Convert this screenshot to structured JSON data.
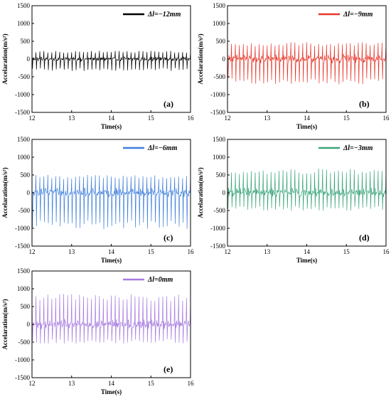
{
  "chart_data": [
    {
      "type": "line",
      "panel_label": "(a)",
      "legend": "Δl=−12mm",
      "color": "#000000",
      "xlabel": "Time(s)",
      "ylabel": "Accelaration(m/s²)",
      "xlim": [
        12,
        16
      ],
      "ylim": [
        -1500,
        1500
      ],
      "xticks": [
        12,
        13,
        14,
        15,
        16
      ],
      "yticks": [
        1500,
        1000,
        500,
        0,
        -500,
        -1000,
        -1500
      ],
      "legend_position": "top-right",
      "signal": {
        "pulses_per_second": 10,
        "upper_peak": 220,
        "lower_peak": -320,
        "noise_band": 150
      }
    },
    {
      "type": "line",
      "panel_label": "(b)",
      "legend": "Δl=−9mm",
      "color": "#e8372a",
      "xlabel": "Time(s)",
      "ylabel": "Accelaration(m/s²)",
      "xlim": [
        12,
        16
      ],
      "ylim": [
        -1500,
        1500
      ],
      "xticks": [
        12,
        13,
        14,
        15,
        16
      ],
      "yticks": [
        1500,
        1000,
        500,
        0,
        -500,
        -1000,
        -1500
      ],
      "legend_position": "top-right",
      "signal": {
        "pulses_per_second": 10,
        "upper_peak": 450,
        "lower_peak": -680,
        "noise_band": 300
      }
    },
    {
      "type": "line",
      "panel_label": "(c)",
      "legend": "Δl=−6mm",
      "color": "#3f7fdc",
      "xlabel": "Time(s)",
      "ylabel": "Accelaration(m/s²)",
      "xlim": [
        12,
        16
      ],
      "ylim": [
        -1500,
        1500
      ],
      "xticks": [
        12,
        13,
        14,
        15,
        16
      ],
      "yticks": [
        1500,
        1000,
        500,
        0,
        -500,
        -1000,
        -1500
      ],
      "legend_position": "top-right",
      "signal": {
        "pulses_per_second": 10,
        "upper_peak": 480,
        "lower_peak": -980,
        "noise_band": 300
      }
    },
    {
      "type": "line",
      "panel_label": "(d)",
      "legend": "Δl=−3mm",
      "color": "#3aa57a",
      "xlabel": "Time(s)",
      "ylabel": "Accelaration(m/s²)",
      "xlim": [
        12,
        16
      ],
      "ylim": [
        -1500,
        1500
      ],
      "xticks": [
        12,
        13,
        14,
        15,
        16
      ],
      "yticks": [
        1500,
        1000,
        500,
        0,
        -500,
        -1000,
        -1500
      ],
      "legend_position": "top-right",
      "signal": {
        "pulses_per_second": 10,
        "upper_peak": 650,
        "lower_peak": -480,
        "noise_band": 300
      }
    },
    {
      "type": "line",
      "panel_label": "(e)",
      "legend": "Δl=0mm",
      "color": "#a77be0",
      "xlabel": "Time(s)",
      "ylabel": "Accelaration(m/s²)",
      "xlim": [
        12,
        16
      ],
      "ylim": [
        -1500,
        1500
      ],
      "xticks": [
        12,
        13,
        14,
        15,
        16
      ],
      "yticks": [
        1500,
        1000,
        500,
        0,
        -500,
        -1000,
        -1500
      ],
      "legend_position": "top-right",
      "signal": {
        "pulses_per_second": 10,
        "upper_peak": 820,
        "lower_peak": -520,
        "noise_band": 330
      }
    }
  ]
}
